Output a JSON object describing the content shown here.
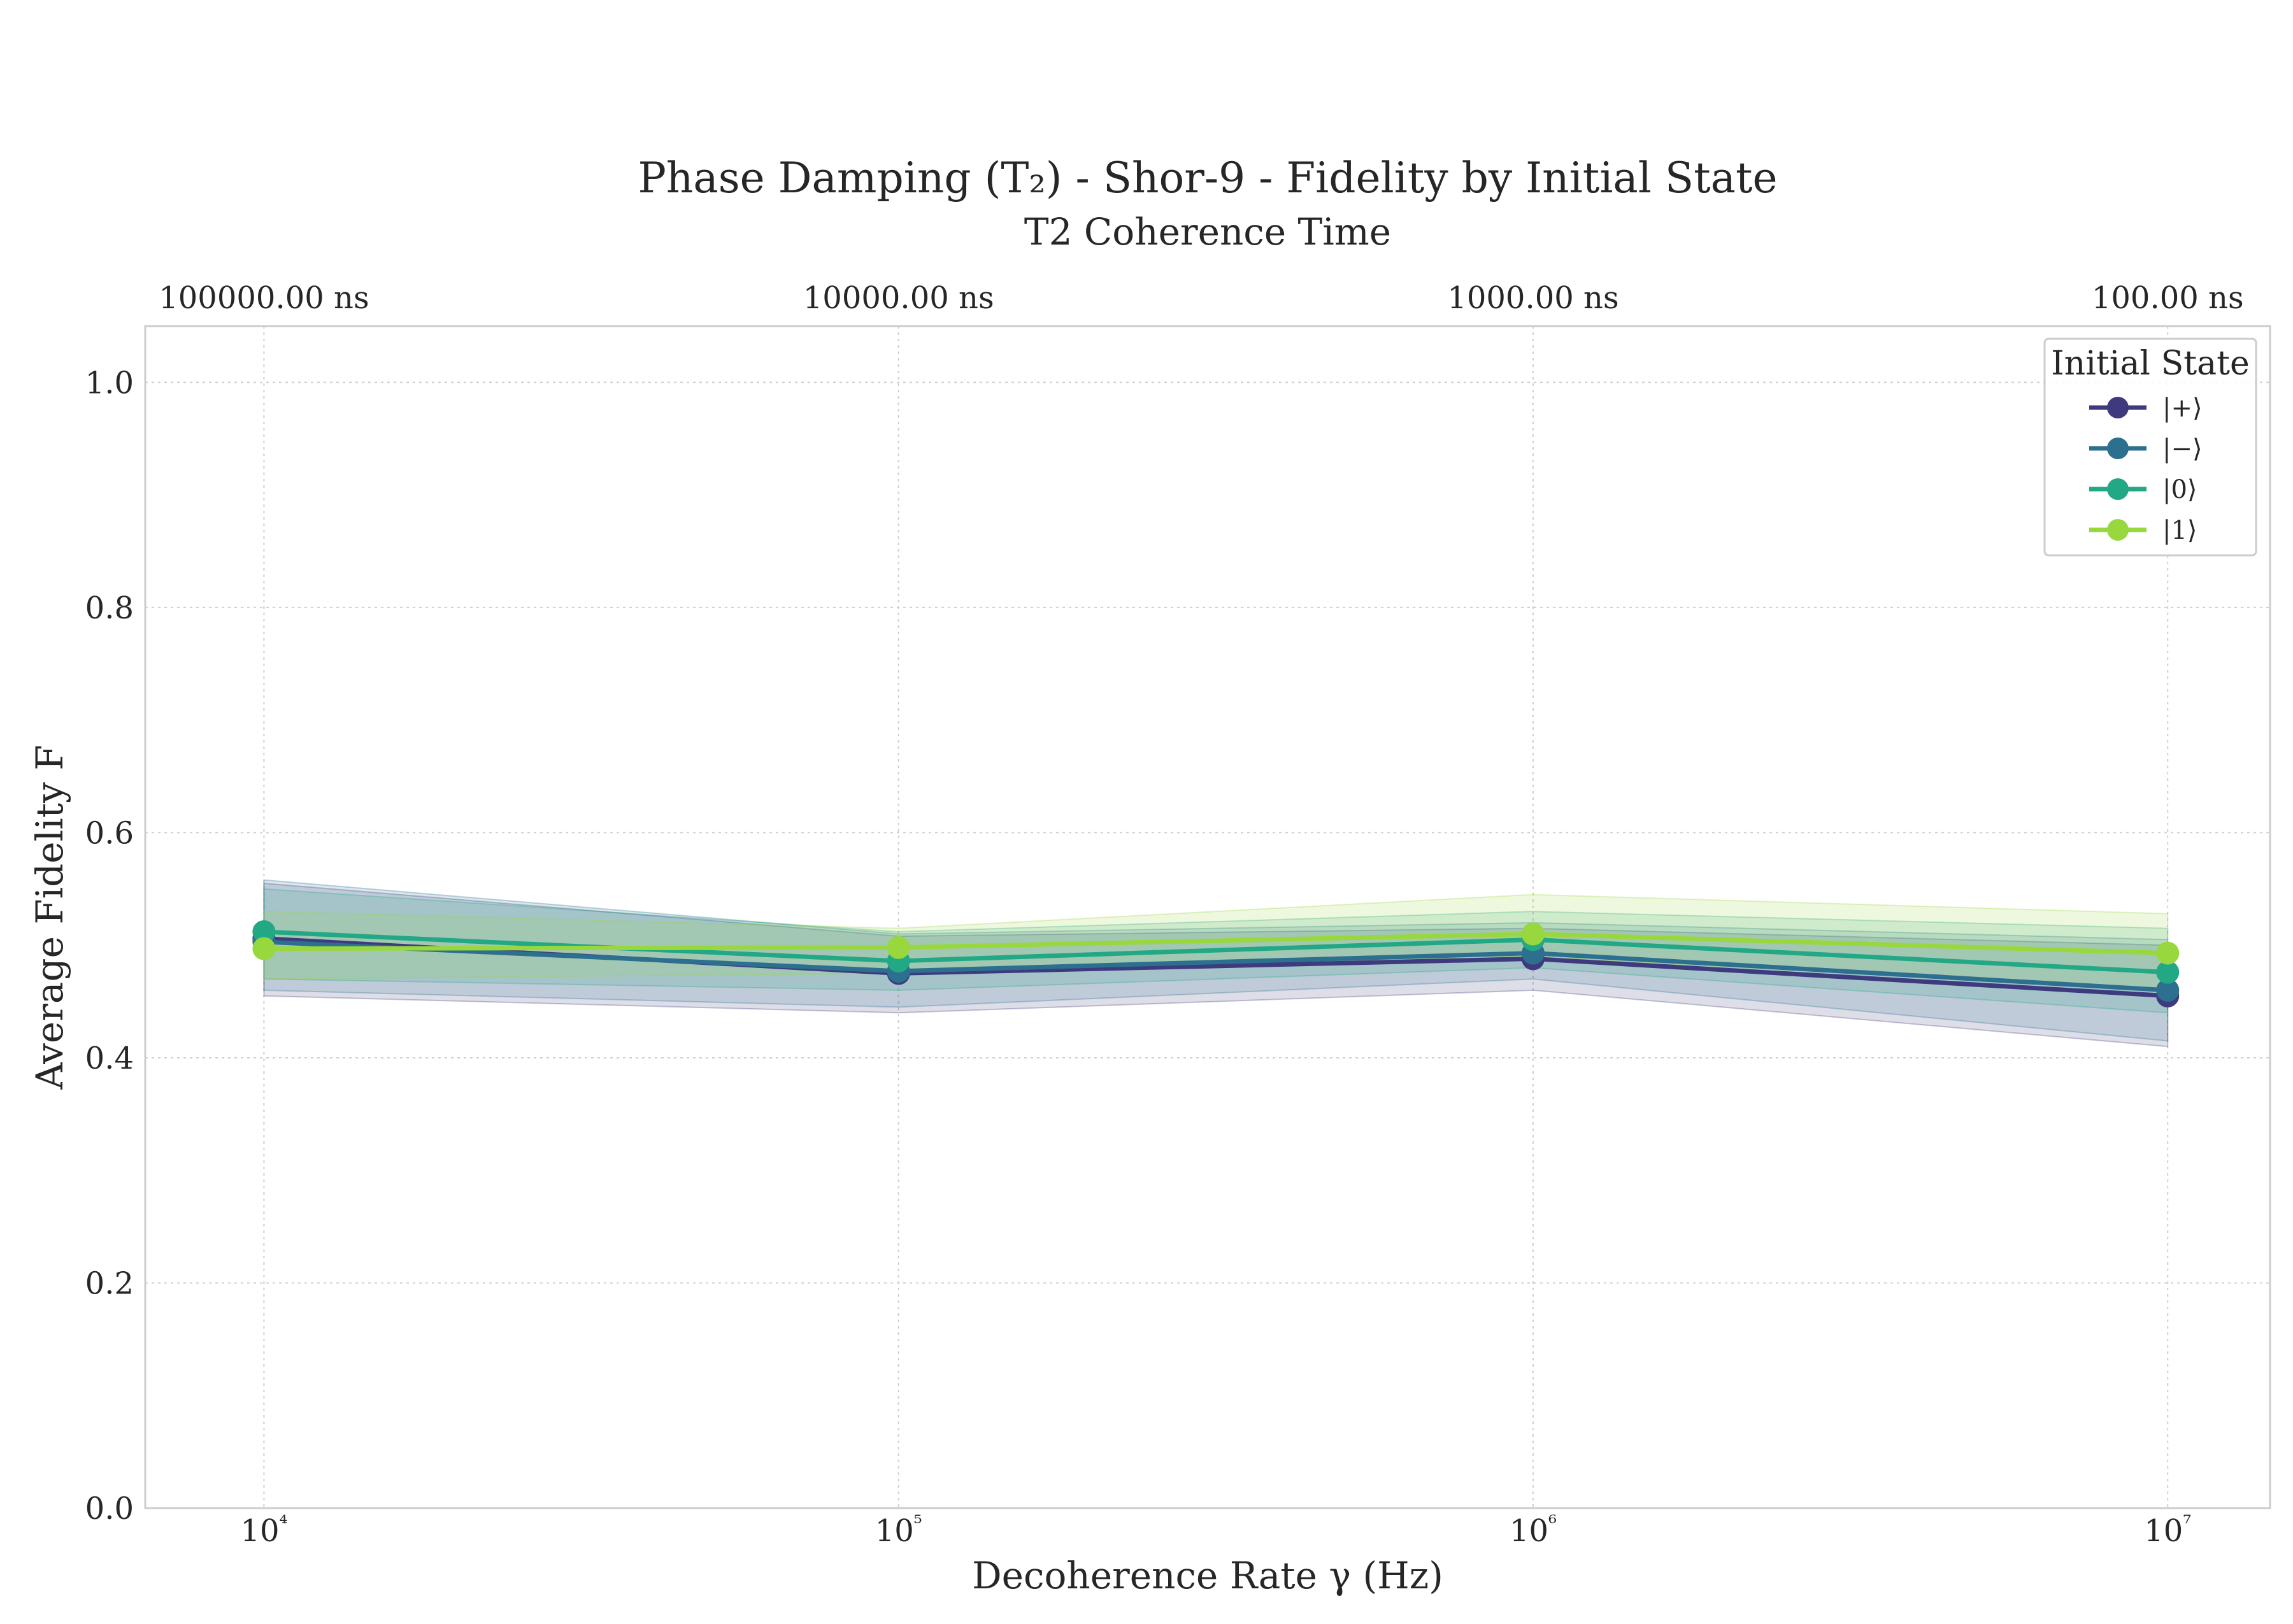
{
  "chart_data": {
    "type": "line",
    "title": "Phase Damping (T₂) - Shor-9 - Fidelity by Initial State",
    "secondary_xlabel": "T2 Coherence Time",
    "xlabel": "Decoherence Rate γ (Hz)",
    "ylabel": "Average Fidelity F",
    "xscale": "log",
    "x": [
      10000,
      100000,
      1000000,
      10000000
    ],
    "x_tick_labels": [
      "10⁴",
      "10⁵",
      "10⁶",
      "10⁷"
    ],
    "secondary_x_tick_labels": [
      "100000.00 ns",
      "10000.00 ns",
      "1000.00 ns",
      "100.00 ns"
    ],
    "xlim": [
      6500,
      14500000
    ],
    "ylim": [
      0.0,
      1.05
    ],
    "y_ticks": [
      0.0,
      0.2,
      0.4,
      0.6,
      0.8,
      1.0
    ],
    "y_tick_labels": [
      "0.0",
      "0.2",
      "0.4",
      "0.6",
      "0.8",
      "1.0"
    ],
    "grid": true,
    "legend_title": "Initial State",
    "legend_position": "top-right",
    "series": [
      {
        "name": "|+⟩",
        "color": "#3e3a7e",
        "values": [
          0.506,
          0.475,
          0.488,
          0.455
        ],
        "lower": [
          0.455,
          0.44,
          0.46,
          0.41
        ],
        "upper": [
          0.555,
          0.508,
          0.515,
          0.5
        ]
      },
      {
        "name": "|−⟩",
        "color": "#2c6f8e",
        "values": [
          0.503,
          0.477,
          0.493,
          0.46
        ],
        "lower": [
          0.46,
          0.445,
          0.47,
          0.415
        ],
        "upper": [
          0.558,
          0.51,
          0.52,
          0.505
        ]
      },
      {
        "name": "|0⟩",
        "color": "#22a884",
        "values": [
          0.512,
          0.486,
          0.505,
          0.476
        ],
        "lower": [
          0.47,
          0.46,
          0.48,
          0.44
        ],
        "upper": [
          0.55,
          0.512,
          0.53,
          0.515
        ]
      },
      {
        "name": "|1⟩",
        "color": "#98d83e",
        "values": [
          0.497,
          0.498,
          0.51,
          0.493
        ],
        "lower": [
          0.47,
          0.475,
          0.49,
          0.46
        ],
        "upper": [
          0.53,
          0.515,
          0.545,
          0.528
        ]
      }
    ]
  }
}
